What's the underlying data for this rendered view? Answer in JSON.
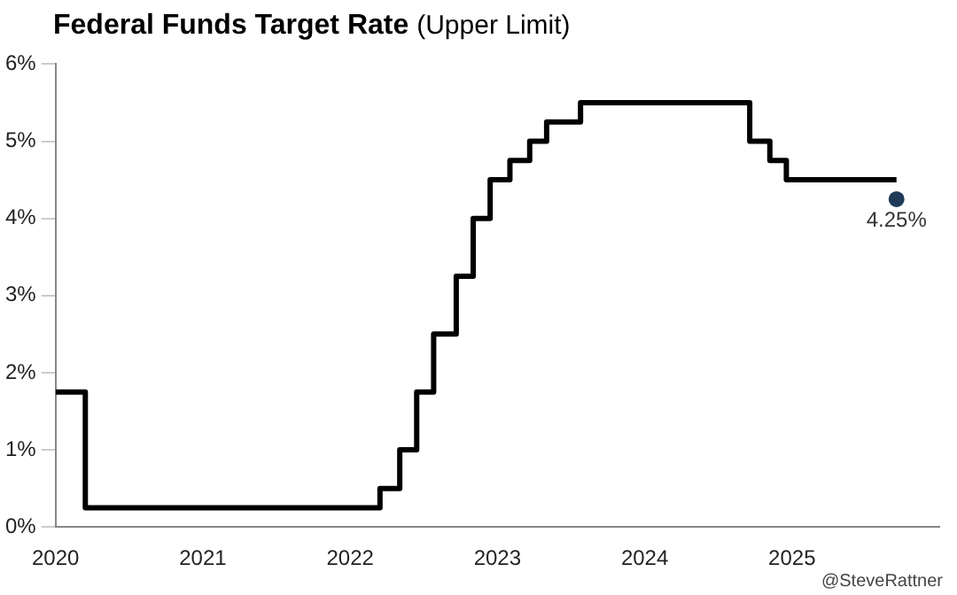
{
  "chart_data": {
    "type": "step",
    "title": "Federal Funds Target Rate",
    "subtitle": "(Upper Limit)",
    "series": [
      {
        "color": "#000000",
        "x": [
          "2020-01-01",
          "2020-03-15",
          "2022-03-16",
          "2022-05-04",
          "2022-06-15",
          "2022-07-27",
          "2022-09-21",
          "2022-11-02",
          "2022-12-14",
          "2023-02-01",
          "2023-03-22",
          "2023-05-03",
          "2023-07-26",
          "2024-09-18",
          "2024-11-07",
          "2024-12-18",
          "2025-09-17"
        ],
        "values": [
          1.75,
          0.25,
          0.5,
          1,
          1.75,
          2.5,
          3.25,
          4,
          4.5,
          4.75,
          5,
          5.25,
          5.5,
          5,
          4.75,
          4.5,
          4.5
        ]
      },
      {
        "type": "scatter",
        "marker": "circle",
        "color": "#1f3b57",
        "x": [
          "2025-09-17"
        ],
        "values": [
          4.25
        ],
        "value_labels": [
          "4.25%"
        ]
      }
    ],
    "xlim": [
      "2020-01-01",
      "2026-01-01"
    ],
    "xticks": [
      "2020",
      "2021",
      "2022",
      "2023",
      "2024",
      "2025"
    ],
    "ylim": [
      0,
      6
    ],
    "yticks": [
      {
        "value": 0,
        "label": "0%"
      },
      {
        "value": 1,
        "label": "1%"
      },
      {
        "value": 2,
        "label": "2%"
      },
      {
        "value": 3,
        "label": "3%"
      },
      {
        "value": 4,
        "label": "4%"
      },
      {
        "value": 5,
        "label": "5%"
      },
      {
        "value": 6,
        "label": "6%"
      }
    ],
    "grid": false,
    "legend": false,
    "line_style": "solid",
    "annotations": [
      "@SteveRattner"
    ]
  }
}
